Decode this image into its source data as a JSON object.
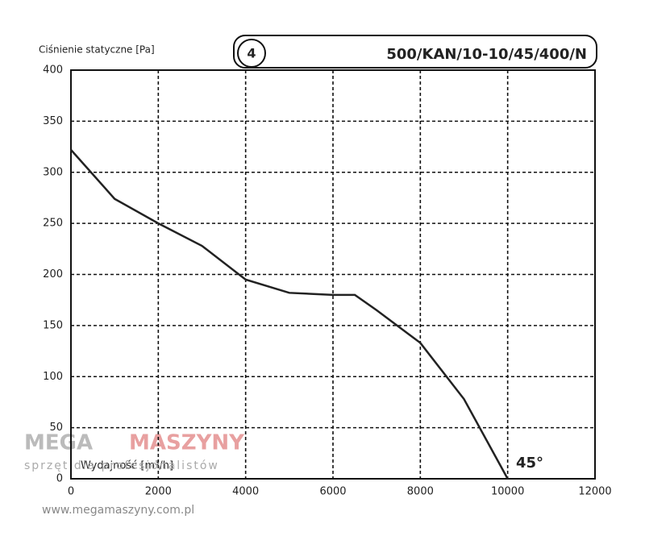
{
  "chart_data": {
    "type": "line",
    "y_label": "Ciśnienie statyczne [Pa]",
    "x_label": "Wydajność [m³/h]",
    "curve_number": "4",
    "model": "500/KAN/10-10/45/400/N",
    "annotation": "45°",
    "x": [
      0,
      1000,
      2000,
      3000,
      4000,
      5000,
      6000,
      6500,
      7000,
      8000,
      9000,
      10000
    ],
    "series": [
      {
        "color": "#222222",
        "values": [
          322,
          274,
          250,
          228,
          195,
          182,
          180,
          180,
          165,
          133,
          78,
          0
        ]
      }
    ],
    "xlim": [
      0,
      12000
    ],
    "xticks": [
      0,
      2000,
      4000,
      6000,
      8000,
      10000,
      12000
    ],
    "ylim": [
      0,
      400
    ],
    "yticks": [
      0,
      50,
      100,
      150,
      200,
      250,
      300,
      350,
      400
    ],
    "grid": true,
    "watermark": {
      "brand_left": "MEGA",
      "brand_right": "MASZYNY",
      "tagline": "sprzęt dla profesjonalistów",
      "url": "www.megamaszyny.com.pl"
    }
  }
}
